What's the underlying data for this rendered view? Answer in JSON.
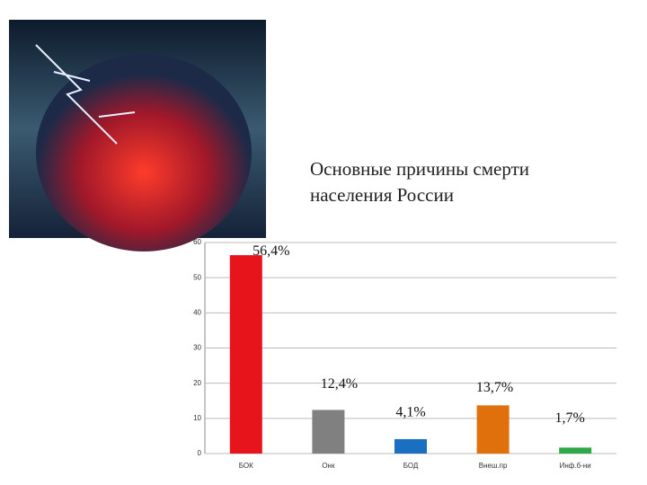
{
  "chart_data": {
    "type": "bar",
    "title": "Основные причины смерти населения России",
    "categories": [
      "БОК",
      "Онк",
      "БОД",
      "Внеш.пр",
      "Инф.б-ни"
    ],
    "values": [
      56.4,
      12.4,
      4.1,
      13.7,
      1.7
    ],
    "value_labels": [
      "56,4%",
      "12,4%",
      "4,1%",
      "13,7%",
      "1,7%"
    ],
    "colors": [
      "#e8141c",
      "#808080",
      "#1a6fc0",
      "#e0700c",
      "#2fa84a"
    ],
    "ylim": [
      0,
      60
    ],
    "yticks": [
      0,
      10,
      20,
      30,
      40,
      50,
      60
    ],
    "grid": true
  }
}
